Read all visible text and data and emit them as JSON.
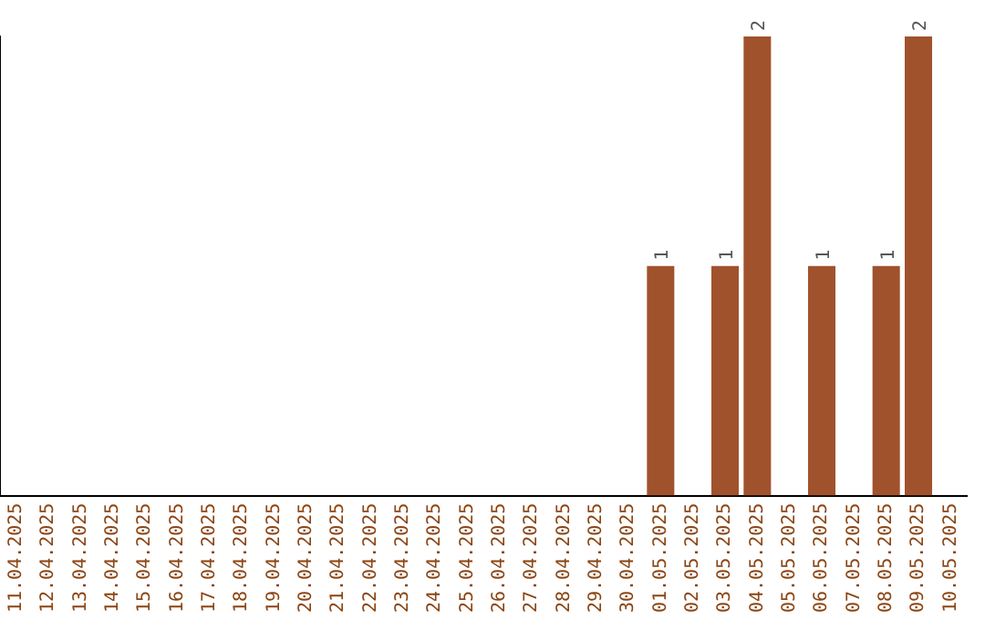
{
  "chart_data": {
    "type": "bar",
    "categories": [
      "11.04.2025",
      "12.04.2025",
      "13.04.2025",
      "14.04.2025",
      "15.04.2025",
      "16.04.2025",
      "17.04.2025",
      "18.04.2025",
      "19.04.2025",
      "20.04.2025",
      "21.04.2025",
      "22.04.2025",
      "23.04.2025",
      "24.04.2025",
      "25.04.2025",
      "26.04.2025",
      "27.04.2025",
      "28.04.2025",
      "29.04.2025",
      "30.04.2025",
      "01.05.2025",
      "02.05.2025",
      "03.05.2025",
      "04.05.2025",
      "05.05.2025",
      "06.05.2025",
      "07.05.2025",
      "08.05.2025",
      "09.05.2025",
      "10.05.2025"
    ],
    "values": [
      null,
      null,
      null,
      null,
      null,
      null,
      null,
      null,
      null,
      null,
      null,
      null,
      null,
      null,
      null,
      null,
      null,
      null,
      null,
      null,
      1,
      null,
      1,
      2,
      null,
      1,
      null,
      1,
      2,
      null
    ],
    "data_labels": true,
    "color": "#a0522d",
    "grid": false,
    "legend": false,
    "tick_labels": "x"
  }
}
